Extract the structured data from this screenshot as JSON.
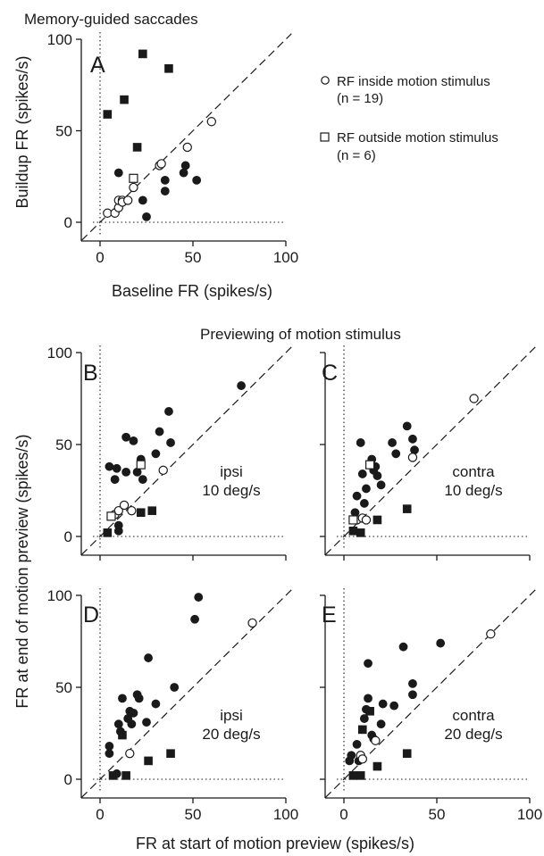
{
  "figure": {
    "title_top": "Memory-guided saccades",
    "title_middle": "Previewing of motion stimulus",
    "ylabel_top": "Buildup FR (spikes/s)",
    "xlabel_top": "Baseline FR (spikes/s)",
    "ylabel_bottom": "FR at end of motion preview (spikes/s)",
    "xlabel_bottom": "FR at start of motion preview (spikes/s)"
  },
  "legend": {
    "items": [
      {
        "marker": "circle",
        "label_line1": "RF inside motion stimulus",
        "label_line2": "(n = 19)"
      },
      {
        "marker": "square",
        "label_line1": "RF outside motion stimulus",
        "label_line2": "(n = 6)"
      }
    ]
  },
  "colors": {
    "filled": "#1a1a1a",
    "open_fill": "#ffffff",
    "axis": "#1a1a1a"
  },
  "chart_data": [
    {
      "id": "A",
      "type": "scatter",
      "panel_label": "A",
      "xlim": [
        0,
        100
      ],
      "ylim": [
        0,
        100
      ],
      "xticks": [
        "0",
        "50",
        "100"
      ],
      "yticks": [
        "0",
        "50",
        "100"
      ],
      "annotation_line1": "",
      "annotation_line2": "",
      "series": [
        {
          "marker": "circle",
          "filled": true,
          "points": [
            [
              10,
              27
            ],
            [
              23,
              12
            ],
            [
              25,
              3
            ],
            [
              35,
              17
            ],
            [
              35,
              23
            ],
            [
              45,
              27
            ],
            [
              46,
              31
            ],
            [
              52,
              23
            ]
          ]
        },
        {
          "marker": "circle",
          "filled": false,
          "points": [
            [
              4,
              5
            ],
            [
              8,
              5
            ],
            [
              10,
              8
            ],
            [
              10,
              12
            ],
            [
              12,
              12
            ],
            [
              12,
              11
            ],
            [
              15,
              12
            ],
            [
              18,
              19
            ],
            [
              32,
              31
            ],
            [
              33,
              32
            ],
            [
              47,
              41
            ],
            [
              60,
              55
            ]
          ]
        },
        {
          "marker": "square",
          "filled": true,
          "points": [
            [
              4,
              59
            ],
            [
              13,
              67
            ],
            [
              20,
              41
            ],
            [
              23,
              92
            ],
            [
              37,
              84
            ]
          ]
        },
        {
          "marker": "square",
          "filled": false,
          "points": [
            [
              18,
              24
            ]
          ]
        }
      ]
    },
    {
      "id": "B",
      "type": "scatter",
      "panel_label": "B",
      "xlim": [
        0,
        100
      ],
      "ylim": [
        0,
        100
      ],
      "xticks": [],
      "yticks": [
        "0",
        "50",
        "100"
      ],
      "annotation_line1": "ipsi",
      "annotation_line2": "10 deg/s",
      "series": [
        {
          "marker": "circle",
          "filled": true,
          "points": [
            [
              5,
              38
            ],
            [
              8,
              31
            ],
            [
              9,
              37
            ],
            [
              10,
              3
            ],
            [
              10,
              6
            ],
            [
              14,
              54
            ],
            [
              14,
              35
            ],
            [
              18,
              52
            ],
            [
              20,
              35
            ],
            [
              22,
              42
            ],
            [
              23,
              31
            ],
            [
              30,
              45
            ],
            [
              32,
              57
            ],
            [
              37,
              68
            ],
            [
              38,
              51
            ],
            [
              76,
              82
            ]
          ]
        },
        {
          "marker": "circle",
          "filled": false,
          "points": [
            [
              8,
              12
            ],
            [
              10,
              14
            ],
            [
              13,
              17
            ],
            [
              17,
              14
            ],
            [
              34,
              36
            ]
          ]
        },
        {
          "marker": "square",
          "filled": true,
          "points": [
            [
              4,
              2
            ],
            [
              22,
              13
            ],
            [
              28,
              14
            ]
          ]
        },
        {
          "marker": "square",
          "filled": false,
          "points": [
            [
              6,
              11
            ],
            [
              22,
              39
            ]
          ]
        }
      ]
    },
    {
      "id": "C",
      "type": "scatter",
      "panel_label": "C",
      "xlim": [
        0,
        100
      ],
      "ylim": [
        0,
        100
      ],
      "xticks": [],
      "yticks": [],
      "annotation_line1": "contra",
      "annotation_line2": "10 deg/s",
      "series": [
        {
          "marker": "circle",
          "filled": true,
          "points": [
            [
              6,
              13
            ],
            [
              7,
              22
            ],
            [
              9,
              51
            ],
            [
              10,
              34
            ],
            [
              11,
              18
            ],
            [
              12,
              26
            ],
            [
              15,
              42
            ],
            [
              16,
              36
            ],
            [
              17,
              38
            ],
            [
              18,
              33
            ],
            [
              20,
              28
            ],
            [
              26,
              51
            ],
            [
              28,
              45
            ],
            [
              34,
              60
            ],
            [
              37,
              53
            ],
            [
              38,
              47
            ]
          ]
        },
        {
          "marker": "circle",
          "filled": false,
          "points": [
            [
              7,
              9
            ],
            [
              10,
              10
            ],
            [
              12,
              9
            ],
            [
              37,
              43
            ],
            [
              70,
              75
            ]
          ]
        },
        {
          "marker": "square",
          "filled": true,
          "points": [
            [
              5,
              3
            ],
            [
              9,
              2
            ],
            [
              18,
              9
            ],
            [
              34,
              15
            ]
          ]
        },
        {
          "marker": "square",
          "filled": false,
          "points": [
            [
              5,
              9
            ],
            [
              14,
              39
            ]
          ]
        }
      ]
    },
    {
      "id": "D",
      "type": "scatter",
      "panel_label": "D",
      "xlim": [
        0,
        100
      ],
      "ylim": [
        0,
        100
      ],
      "xticks": [
        "0",
        "50",
        "100"
      ],
      "yticks": [
        "0",
        "50",
        "100"
      ],
      "annotation_line1": "ipsi",
      "annotation_line2": "20 deg/s",
      "series": [
        {
          "marker": "circle",
          "filled": true,
          "points": [
            [
              5,
              14
            ],
            [
              5,
              18
            ],
            [
              9,
              3
            ],
            [
              10,
              30
            ],
            [
              11,
              26
            ],
            [
              12,
              44
            ],
            [
              15,
              33
            ],
            [
              16,
              37
            ],
            [
              17,
              30
            ],
            [
              18,
              36
            ],
            [
              20,
              46
            ],
            [
              21,
              44
            ],
            [
              25,
              31
            ],
            [
              26,
              66
            ],
            [
              30,
              41
            ],
            [
              40,
              50
            ],
            [
              51,
              87
            ],
            [
              53,
              99
            ]
          ]
        },
        {
          "marker": "circle",
          "filled": false,
          "points": [
            [
              16,
              14
            ],
            [
              82,
              85
            ]
          ]
        },
        {
          "marker": "square",
          "filled": true,
          "points": [
            [
              7,
              2
            ],
            [
              12,
              24
            ],
            [
              14,
              2
            ],
            [
              26,
              10
            ],
            [
              38,
              14
            ]
          ]
        },
        {
          "marker": "square",
          "filled": false,
          "points": []
        }
      ]
    },
    {
      "id": "E",
      "type": "scatter",
      "panel_label": "E",
      "xlim": [
        0,
        100
      ],
      "ylim": [
        0,
        100
      ],
      "xticks": [
        "0",
        "50",
        "100"
      ],
      "yticks": [],
      "annotation_line1": "contra",
      "annotation_line2": "20 deg/s",
      "series": [
        {
          "marker": "circle",
          "filled": true,
          "points": [
            [
              3,
              10
            ],
            [
              4,
              13
            ],
            [
              7,
              19
            ],
            [
              8,
              10
            ],
            [
              11,
              33
            ],
            [
              12,
              38
            ],
            [
              13,
              44
            ],
            [
              13,
              63
            ],
            [
              15,
              24
            ],
            [
              16,
              22
            ],
            [
              20,
              30
            ],
            [
              21,
              41
            ],
            [
              27,
              40
            ],
            [
              32,
              72
            ],
            [
              37,
              52
            ],
            [
              37,
              46
            ],
            [
              52,
              74
            ]
          ]
        },
        {
          "marker": "circle",
          "filled": false,
          "points": [
            [
              9,
              13
            ],
            [
              10,
              11
            ],
            [
              17,
              21
            ],
            [
              79,
              79
            ]
          ]
        },
        {
          "marker": "square",
          "filled": true,
          "points": [
            [
              5,
              2
            ],
            [
              9,
              2
            ],
            [
              10,
              27
            ],
            [
              14,
              37
            ],
            [
              18,
              7
            ],
            [
              34,
              14
            ]
          ]
        },
        {
          "marker": "square",
          "filled": false,
          "points": []
        }
      ]
    }
  ]
}
